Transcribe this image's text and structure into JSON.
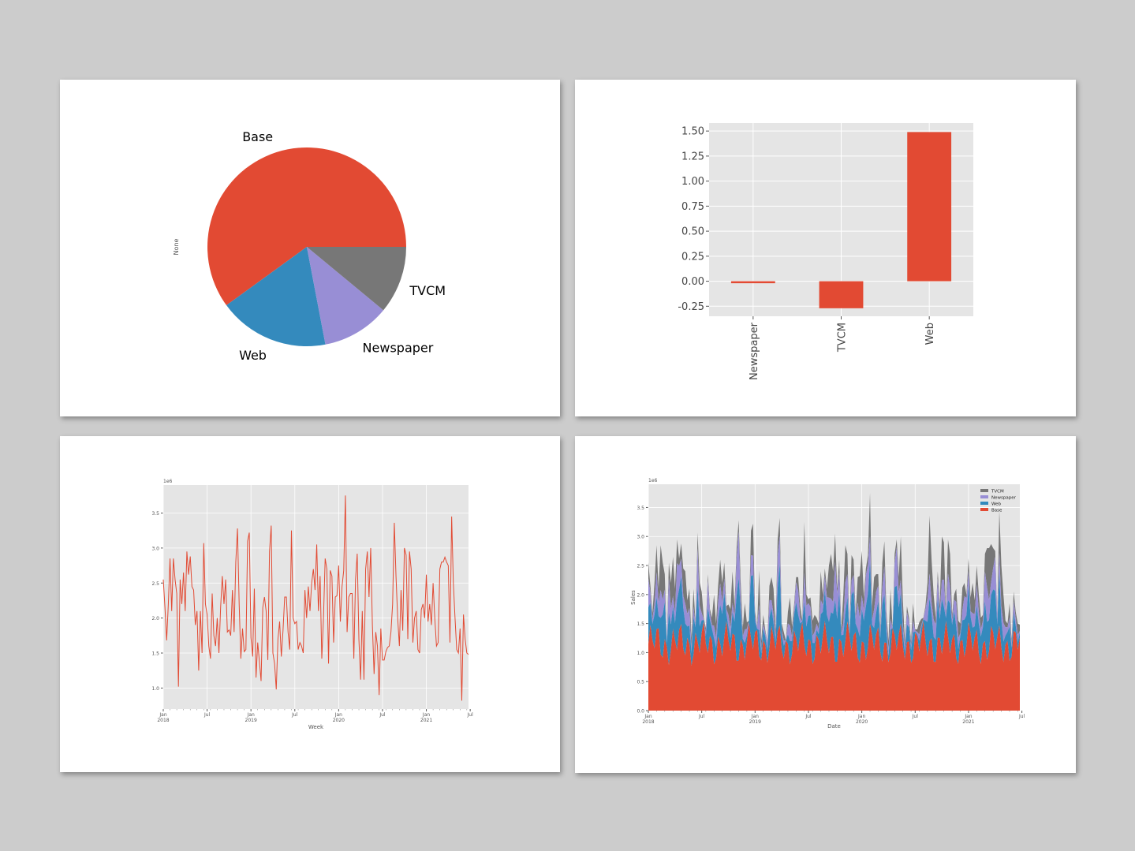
{
  "colors": {
    "red": "#E24A33",
    "blue": "#348ABD",
    "purple": "#988ED5",
    "gray": "#777777",
    "plot_bg": "#E5E5E5",
    "grid": "#FFFFFF"
  },
  "chart_data": [
    {
      "type": "pie",
      "ylabel": "None",
      "slices": [
        {
          "name": "Base",
          "value": 60,
          "color": "#E24A33"
        },
        {
          "name": "Web",
          "value": 18,
          "color": "#348ABD"
        },
        {
          "name": "Newspaper",
          "value": 11,
          "color": "#988ED5"
        },
        {
          "name": "TVCM",
          "value": 11,
          "color": "#777777"
        }
      ],
      "start_angle_deg": 0,
      "direction": "clockwise"
    },
    {
      "type": "bar",
      "categories": [
        "Newspaper",
        "TVCM",
        "Web"
      ],
      "values": [
        -0.02,
        -0.27,
        1.49
      ],
      "ylim": [
        -0.35,
        1.58
      ],
      "yticks": [
        "-0.25",
        "0.00",
        "0.25",
        "0.50",
        "0.75",
        "1.00",
        "1.25",
        "1.50"
      ],
      "grid": true
    },
    {
      "type": "line",
      "xlabel": "Week",
      "y_offset_label": "1e6",
      "x_start": "2018-01",
      "x_step": "week",
      "xticks": [
        {
          "label": "Jan",
          "sub": "2018",
          "week": 0
        },
        {
          "label": "Jul",
          "sub": "",
          "week": 26
        },
        {
          "label": "Jan",
          "sub": "2019",
          "week": 52
        },
        {
          "label": "Jul",
          "sub": "",
          "week": 78
        },
        {
          "label": "Jan",
          "sub": "2020",
          "week": 104
        },
        {
          "label": "Jul",
          "sub": "",
          "week": 130
        },
        {
          "label": "Jan",
          "sub": "2021",
          "week": 156
        },
        {
          "label": "Jul",
          "sub": "",
          "week": 182
        }
      ],
      "yticks": [
        "1.0",
        "1.5",
        "2.0",
        "2.5",
        "3.0",
        "3.5"
      ],
      "ylim": [
        0.7,
        3.9
      ],
      "values": [
        2.55,
        2.15,
        1.68,
        2.2,
        2.85,
        2.1,
        2.85,
        2.55,
        2.35,
        1.02,
        2.55,
        2.2,
        2.65,
        2.1,
        2.95,
        2.62,
        2.88,
        2.45,
        2.4,
        1.9,
        2.1,
        1.25,
        2.1,
        1.5,
        3.07,
        2.2,
        2.05,
        1.6,
        1.42,
        2.35,
        1.75,
        1.6,
        2.0,
        1.5,
        2.15,
        2.6,
        2.2,
        2.55,
        1.8,
        1.83,
        1.75,
        2.4,
        1.8,
        2.8,
        3.28,
        2.2,
        1.42,
        1.85,
        1.52,
        1.55,
        3.1,
        3.22,
        1.72,
        1.45,
        2.42,
        1.15,
        1.65,
        1.38,
        1.1,
        2.15,
        2.3,
        2.1,
        1.4,
        2.95,
        3.32,
        1.5,
        1.35,
        0.98,
        1.7,
        1.95,
        1.45,
        1.82,
        2.3,
        2.3,
        1.8,
        1.55,
        3.25,
        2.0,
        1.92,
        1.95,
        1.55,
        1.65,
        1.6,
        1.5,
        2.4,
        2.0,
        2.45,
        2.1,
        2.5,
        2.7,
        2.4,
        3.05,
        2.1,
        2.6,
        1.42,
        2.0,
        2.85,
        2.7,
        1.35,
        2.68,
        2.6,
        1.65,
        2.3,
        2.32,
        2.75,
        1.95,
        2.45,
        2.68,
        3.75,
        1.8,
        2.3,
        2.35,
        2.35,
        1.42,
        2.55,
        2.92,
        1.7,
        1.12,
        2.1,
        1.12,
        2.7,
        2.95,
        2.3,
        3.0,
        1.9,
        1.2,
        1.8,
        1.6,
        0.9,
        1.85,
        1.4,
        1.4,
        1.52,
        1.58,
        1.6,
        1.8,
        2.2,
        3.36,
        2.6,
        2.0,
        1.6,
        2.4,
        1.82,
        3.0,
        2.9,
        1.7,
        2.95,
        2.7,
        1.65,
        2.0,
        2.1,
        1.55,
        1.5,
        2.12,
        2.2,
        2.0,
        2.62,
        1.95,
        2.2,
        1.9,
        2.5,
        2.0,
        1.6,
        1.65,
        2.7,
        2.8,
        2.8,
        2.87,
        2.8,
        2.75,
        1.65,
        3.45,
        2.5,
        2.0,
        1.55,
        1.5,
        1.85,
        0.82,
        2.05,
        1.7,
        1.5,
        1.48
      ]
    },
    {
      "type": "area",
      "stacked": true,
      "xlabel": "Date",
      "ylabel": "Sales",
      "y_offset_label": "1e6",
      "legend_position": "top-right",
      "legend": [
        "TVCM",
        "Newspaper",
        "Web",
        "Base"
      ],
      "xticks": [
        {
          "label": "Jan",
          "sub": "2018",
          "week": 0
        },
        {
          "label": "Jul",
          "sub": "",
          "week": 26
        },
        {
          "label": "Jan",
          "sub": "2019",
          "week": 52
        },
        {
          "label": "Jul",
          "sub": "",
          "week": 78
        },
        {
          "label": "Jan",
          "sub": "2020",
          "week": 104
        },
        {
          "label": "Jul",
          "sub": "",
          "week": 130
        },
        {
          "label": "Jan",
          "sub": "2021",
          "week": 156
        },
        {
          "label": "Jul",
          "sub": "",
          "week": 182
        }
      ],
      "yticks": [
        "0.0",
        "0.5",
        "1.0",
        "1.5",
        "2.0",
        "2.5",
        "3.0",
        "3.5"
      ],
      "ylim": [
        0,
        3.9
      ],
      "series_order_bottom_to_top": [
        "Base",
        "Web",
        "Newspaper",
        "TVCM"
      ],
      "series_colors": {
        "Base": "#E24A33",
        "Web": "#348ABD",
        "Newspaper": "#988ED5",
        "TVCM": "#777777"
      }
    }
  ]
}
